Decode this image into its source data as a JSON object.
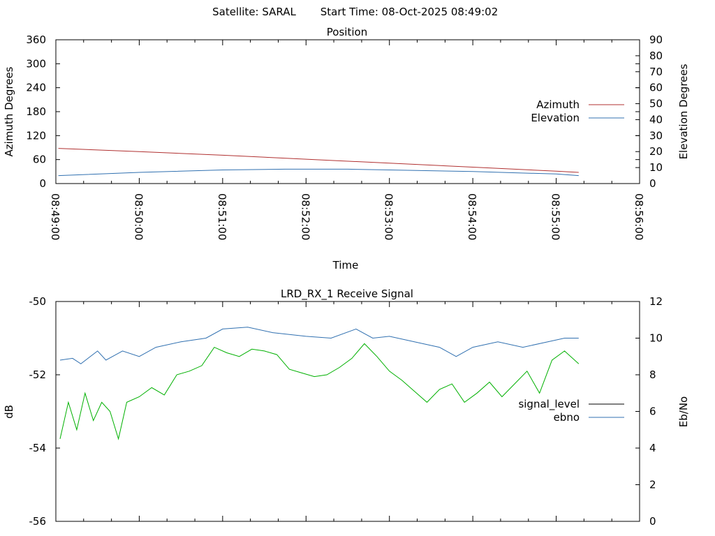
{
  "header": {
    "satellite": "Satellite: SARAL",
    "start_time": "Start Time: 08-Oct-2025 08:49:02"
  },
  "colors": {
    "azimuth": "#b03030",
    "elevation": "#3070b0",
    "signal_level": "#000000",
    "ebno": "#3070b0",
    "green_trace": "#00b000"
  },
  "chart_data": [
    {
      "type": "line",
      "title": "Position",
      "xlabel": "Time",
      "ylabel": "Azimuth Degrees",
      "y2label": "Elevation Degrees",
      "x_ticks": [
        "08:49:00",
        "08:50:00",
        "08:51:00",
        "08:52:00",
        "08:53:00",
        "08:54:00",
        "08:55:00",
        "08:56:00"
      ],
      "xlim_minutes": [
        0,
        7
      ],
      "ylim": [
        0,
        360
      ],
      "y_ticks": [
        "0",
        "60",
        "120",
        "180",
        "240",
        "300",
        "360"
      ],
      "y2lim": [
        0,
        90
      ],
      "y2_ticks": [
        "0",
        "10",
        "20",
        "30",
        "40",
        "50",
        "60",
        "70",
        "80",
        "90"
      ],
      "legend_position": "right",
      "series": [
        {
          "name": "Azimuth",
          "axis": "y",
          "x_minutes": [
            0.03,
            1,
            2,
            3,
            4,
            5,
            6,
            6.27
          ],
          "values": [
            88,
            80,
            71,
            61,
            51,
            41,
            31,
            28
          ]
        },
        {
          "name": "Elevation",
          "axis": "y2",
          "x_minutes": [
            0.03,
            1,
            2,
            2.75,
            3.5,
            4,
            5,
            6,
            6.27
          ],
          "values": [
            5,
            7,
            8.5,
            9,
            9,
            8.5,
            7.5,
            6,
            5
          ]
        }
      ]
    },
    {
      "type": "line",
      "title": "LRD_RX_1 Receive Signal",
      "ylabel": "dB",
      "y2label": "Eb/No",
      "ylim": [
        -56,
        -50
      ],
      "y_ticks": [
        "-56",
        "-54",
        "-52",
        "-50"
      ],
      "y2lim": [
        0,
        12
      ],
      "y2_ticks": [
        "0",
        "2",
        "4",
        "6",
        "8",
        "10",
        "12"
      ],
      "xlim_minutes": [
        0,
        7
      ],
      "legend_position": "right",
      "series": [
        {
          "name": "signal_level",
          "axis": "y",
          "x_minutes": [],
          "values": []
        },
        {
          "name": "ebno",
          "axis": "y2",
          "x_minutes": [
            0.05,
            0.2,
            0.3,
            0.5,
            0.6,
            0.8,
            1,
            1.2,
            1.5,
            1.8,
            2,
            2.3,
            2.6,
            3,
            3.3,
            3.6,
            3.8,
            4,
            4.3,
            4.6,
            4.8,
            5,
            5.3,
            5.6,
            5.9,
            6.1,
            6.27
          ],
          "values": [
            8.8,
            8.9,
            8.6,
            9.3,
            8.8,
            9.3,
            9.0,
            9.5,
            9.8,
            10.0,
            10.5,
            10.6,
            10.3,
            10.1,
            10.0,
            10.5,
            10.0,
            10.1,
            9.8,
            9.5,
            9.0,
            9.5,
            9.8,
            9.5,
            9.8,
            10.0,
            10.0
          ]
        },
        {
          "axis": "y2",
          "x_minutes": [
            0.05,
            0.15,
            0.25,
            0.35,
            0.45,
            0.55,
            0.65,
            0.75,
            0.85,
            1.0,
            1.15,
            1.3,
            1.45,
            1.6,
            1.75,
            1.9,
            2.05,
            2.2,
            2.35,
            2.5,
            2.65,
            2.8,
            2.95,
            3.1,
            3.25,
            3.4,
            3.55,
            3.7,
            3.85,
            4.0,
            4.15,
            4.3,
            4.45,
            4.6,
            4.75,
            4.9,
            5.05,
            5.2,
            5.35,
            5.5,
            5.65,
            5.8,
            5.95,
            6.1,
            6.27
          ],
          "values": [
            4.5,
            6.5,
            5.0,
            7.0,
            5.5,
            6.5,
            6.0,
            4.5,
            6.5,
            6.8,
            7.3,
            6.9,
            8.0,
            8.2,
            8.5,
            9.5,
            9.2,
            9.0,
            9.4,
            9.3,
            9.1,
            8.3,
            8.1,
            7.9,
            8.0,
            8.4,
            8.9,
            9.7,
            9.0,
            8.2,
            7.7,
            7.1,
            6.5,
            7.2,
            7.5,
            6.5,
            7.0,
            7.6,
            6.8,
            7.5,
            8.2,
            7.0,
            8.8,
            9.3,
            8.6
          ]
        }
      ]
    }
  ]
}
